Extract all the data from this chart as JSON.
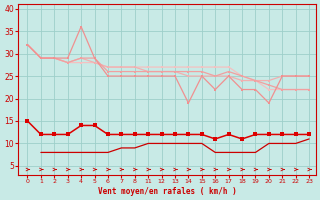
{
  "xlabel": "Vent moyen/en rafales ( km/h )",
  "bg_color": "#c8eae6",
  "grid_color": "#9ecfca",
  "x_hours": [
    0,
    1,
    2,
    3,
    4,
    5,
    6,
    7,
    8,
    11,
    12,
    13,
    14,
    15,
    16,
    17,
    18,
    19,
    20,
    21,
    22,
    23
  ],
  "ylim": [
    3,
    41
  ],
  "yticks": [
    5,
    10,
    15,
    20,
    25,
    30,
    35,
    40
  ],
  "gust1_y": [
    32,
    29,
    29,
    29,
    36,
    29,
    25,
    25,
    25,
    25,
    25,
    25,
    19,
    25,
    22,
    25,
    22,
    22,
    19,
    25,
    25,
    25
  ],
  "gust1_color": "#f09090",
  "gust2_y": [
    32,
    29,
    29,
    28,
    29,
    29,
    26,
    26,
    26,
    26,
    26,
    26,
    26,
    26,
    25,
    26,
    25,
    24,
    23,
    22,
    22,
    22
  ],
  "gust2_color": "#f0a0a0",
  "gust3_y": [
    32,
    29,
    29,
    28,
    29,
    28,
    27,
    27,
    27,
    26,
    26,
    26,
    25,
    25,
    25,
    25,
    24,
    24,
    24,
    25,
    25,
    25
  ],
  "gust3_color": "#f0b0b0",
  "gust4_y": [
    32,
    29,
    29,
    28,
    28,
    28,
    27,
    27,
    27,
    27,
    27,
    27,
    27,
    27,
    27,
    27,
    25,
    24,
    22,
    22,
    22,
    22
  ],
  "gust4_color": "#f5c0c0",
  "mean_y": [
    15,
    12,
    12,
    12,
    14,
    14,
    12,
    12,
    12,
    12,
    12,
    12,
    12,
    12,
    11,
    12,
    11,
    12,
    12,
    12,
    12,
    12
  ],
  "mean_color": "#dd0000",
  "min_y": [
    null,
    8,
    8,
    8,
    8,
    8,
    8,
    9,
    9,
    10,
    10,
    10,
    10,
    10,
    8,
    8,
    8,
    8,
    10,
    10,
    10,
    11
  ],
  "min_color": "#cc0000",
  "arrow_color": "#cc0000",
  "lw_gust": 0.9,
  "lw_mean": 1.1,
  "lw_min": 0.9,
  "ms_gust": 2.0,
  "ms_mean": 2.5,
  "ms_min": 1.5
}
